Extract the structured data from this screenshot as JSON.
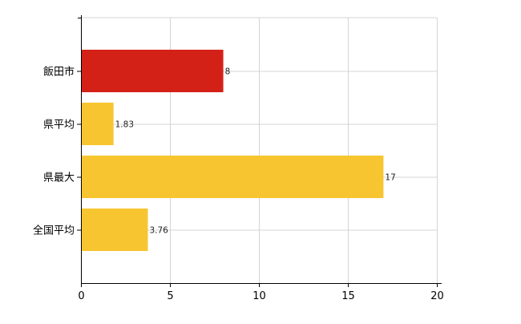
{
  "chart_data": {
    "type": "bar",
    "orientation": "horizontal",
    "categories": [
      "飯田市",
      "県平均",
      "県最大",
      "全国平均"
    ],
    "values": [
      8,
      1.83,
      17,
      3.76
    ],
    "value_labels": [
      "8",
      "1.83",
      "17",
      "3.76"
    ],
    "bar_colors": [
      "#d42118",
      "#f7c530",
      "#f7c530",
      "#f7c530"
    ],
    "title": "",
    "xlabel": "",
    "ylabel": "",
    "xlim": [
      0,
      20
    ],
    "x_ticks": [
      0,
      5,
      10,
      15,
      20
    ],
    "x_tick_labels": [
      "0",
      "5",
      "10",
      "15",
      "20"
    ],
    "grid": true,
    "legend": "none"
  }
}
